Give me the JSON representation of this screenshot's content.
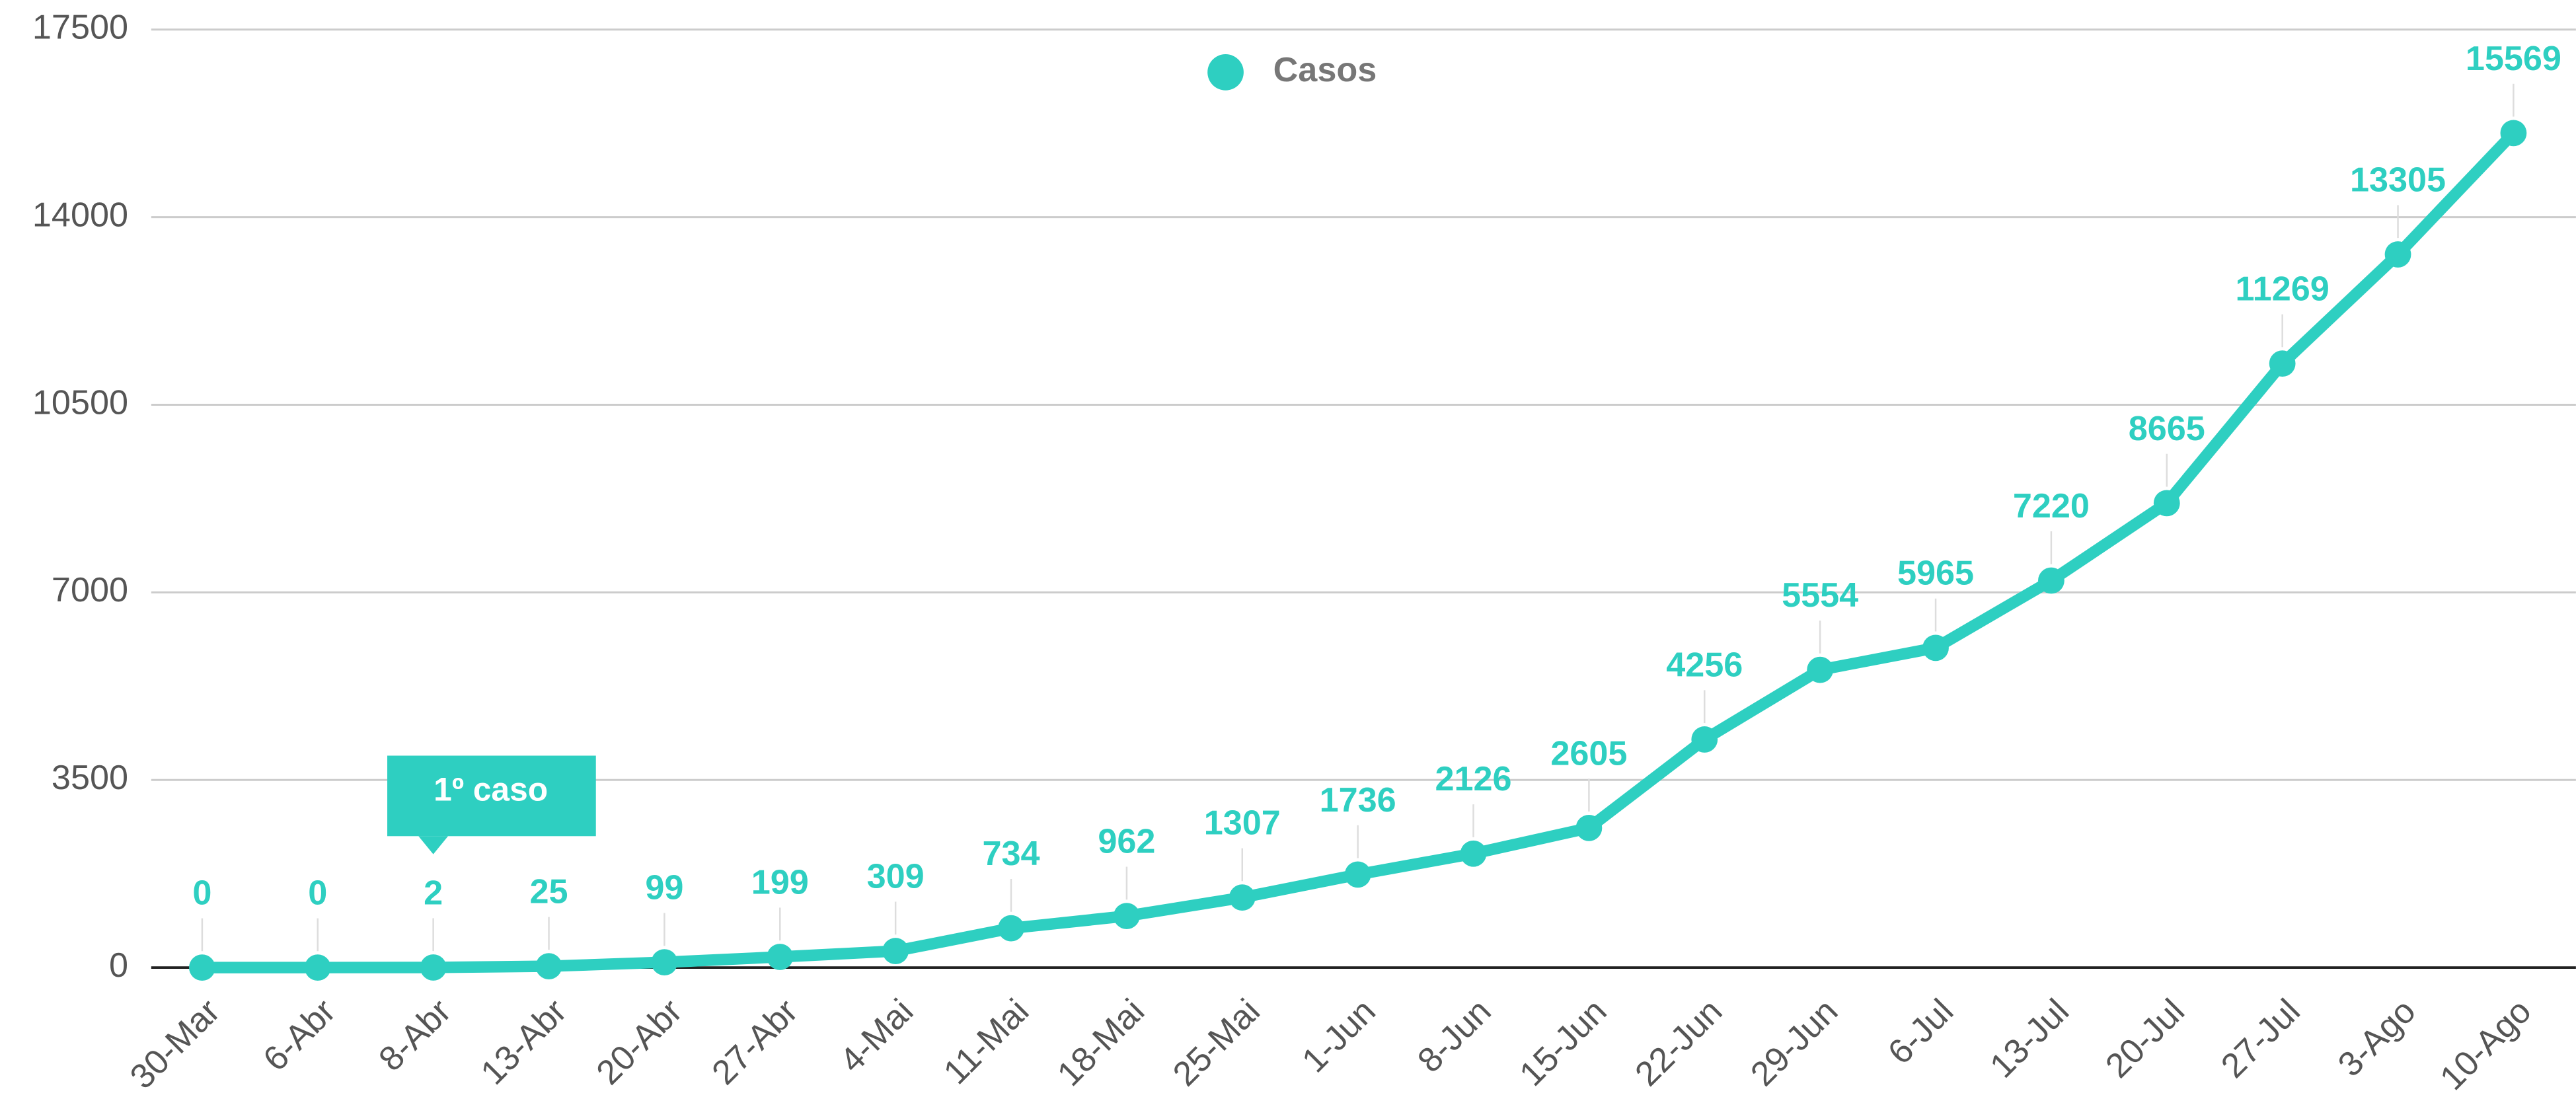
{
  "chart_data": {
    "type": "line",
    "categories": [
      "30-Mar",
      "6-Abr",
      "8-Abr",
      "13-Abr",
      "20-Abr",
      "27-Abr",
      "4-Mai",
      "11-Mai",
      "18-Mai",
      "25-Mai",
      "1-Jun",
      "8-Jun",
      "15-Jun",
      "22-Jun",
      "29-Jun",
      "6-Jul",
      "13-Jul",
      "20-Jul",
      "27-Jul",
      "3-Ago",
      "10-Ago"
    ],
    "series": [
      {
        "name": "Casos",
        "color": "#2ecfc1",
        "values": [
          0,
          0,
          2,
          25,
          99,
          199,
          309,
          734,
          962,
          1307,
          1736,
          2126,
          2605,
          4256,
          5554,
          5965,
          7220,
          8665,
          11269,
          13305,
          15569
        ]
      }
    ],
    "ylim": [
      0,
      17500
    ],
    "yticks": [
      0,
      3500,
      7000,
      10500,
      14000,
      17500
    ],
    "grid": true,
    "legend": "top",
    "annotations": [
      {
        "text": "1º caso",
        "at": "8-Abr"
      }
    ]
  }
}
